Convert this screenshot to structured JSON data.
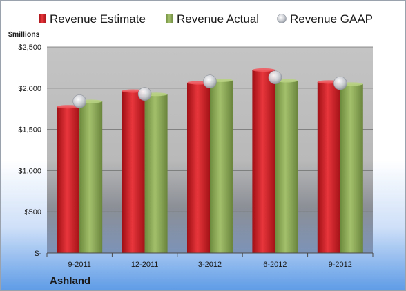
{
  "chart_data": {
    "type": "bar",
    "company": "Ashland",
    "ylabel": "$millions",
    "categories": [
      "9-2011",
      "12-2011",
      "3-2012",
      "6-2012",
      "9-2012"
    ],
    "ylim": [
      0,
      2500
    ],
    "yticks": [
      0,
      500,
      1000,
      1500,
      2000,
      2500
    ],
    "ytick_labels": [
      "$-",
      "$500",
      "$1,000",
      "$1,500",
      "$2,000",
      "$2,500"
    ],
    "grid": true,
    "legend_position": "top",
    "series": [
      {
        "name": "Revenue Estimate",
        "kind": "bar",
        "color": "#d42027",
        "values": [
          1775,
          1965,
          2065,
          2220,
          2075
        ]
      },
      {
        "name": "Revenue Actual",
        "kind": "bar",
        "color": "#8fac5a",
        "values": [
          1840,
          1925,
          2095,
          2090,
          2050
        ]
      },
      {
        "name": "Revenue GAAP",
        "kind": "marker",
        "color": "#bfc3c9",
        "values": [
          1840,
          1930,
          2080,
          2130,
          2060
        ]
      }
    ]
  }
}
